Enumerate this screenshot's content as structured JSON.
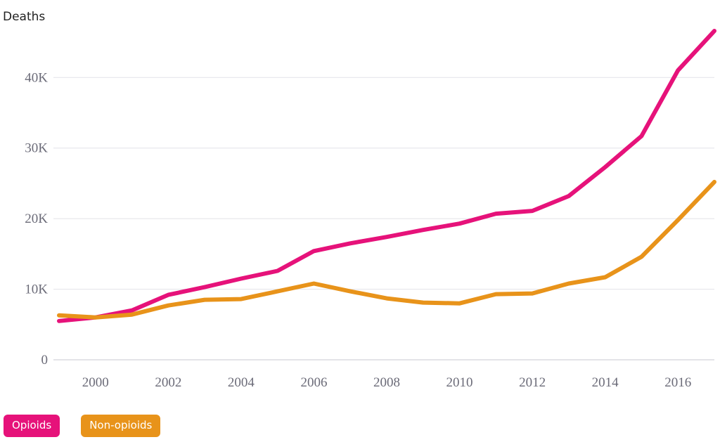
{
  "chart_data": {
    "type": "line",
    "ylabel": "Deaths",
    "x": [
      1999,
      2000,
      2001,
      2002,
      2003,
      2004,
      2005,
      2006,
      2007,
      2008,
      2009,
      2010,
      2011,
      2012,
      2013,
      2014,
      2015,
      2016,
      2017
    ],
    "xticks": [
      "2000",
      "2002",
      "2004",
      "2006",
      "2008",
      "2010",
      "2012",
      "2014",
      "2016"
    ],
    "yticks": [
      "0",
      "10K",
      "20K",
      "30K",
      "40K"
    ],
    "ylim": [
      0,
      46000
    ],
    "grid": true,
    "legend_position": "bottom-left",
    "series": [
      {
        "name": "Opioids",
        "color": "#e6127a",
        "values": [
          5500,
          6000,
          7000,
          9200,
          10300,
          11500,
          12600,
          15400,
          16500,
          17400,
          18400,
          19300,
          20700,
          21100,
          23200,
          27300,
          31700,
          41000,
          46600
        ]
      },
      {
        "name": "Non-opioids",
        "color": "#e8931a",
        "values": [
          6300,
          6000,
          6400,
          7700,
          8500,
          8600,
          9700,
          10800,
          9700,
          8700,
          8100,
          8000,
          9300,
          9400,
          10800,
          11700,
          14600,
          19800,
          25200
        ]
      }
    ]
  }
}
